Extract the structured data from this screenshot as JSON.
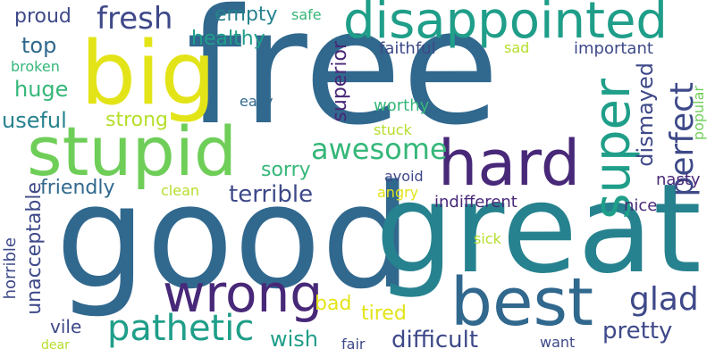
{
  "words": {
    "free": "free",
    "good": "good",
    "great": "great",
    "big": "big",
    "stupid": "stupid",
    "disappointed": "disappointed",
    "hard": "hard",
    "best": "best",
    "wrong": "wrong",
    "super": "super",
    "pathetic": "pathetic",
    "awesome": "awesome",
    "fresh": "fresh",
    "perfect": "perfect",
    "glad": "glad",
    "terrible": "terrible",
    "difficult": "difficult",
    "unacceptable": "unacceptable",
    "pretty": "pretty",
    "dismayed": "dismayed",
    "huge": "huge",
    "friendly": "friendly",
    "empty": "empty",
    "healthy": "healthy",
    "proud": "proud",
    "top": "top",
    "useful": "useful",
    "strong": "strong",
    "sorry": "sorry",
    "superior": "superior",
    "wish": "wish",
    "tired": "tired",
    "bad": "bad",
    "horrible": "horrible",
    "vile": "vile",
    "faithful": "faithful",
    "important": "important",
    "indifferent": "indifferent",
    "nasty": "nasty",
    "nice": "nice",
    "easy": "easy",
    "worthy": "worthy",
    "stuck": "stuck",
    "avoid": "avoid",
    "angry": "angry",
    "sick": "sick",
    "safe": "safe",
    "sad": "sad",
    "broken": "broken",
    "clean": "clean",
    "popular": "popular",
    "fair": "fair",
    "want": "want",
    "dear": "dear"
  },
  "colors": {
    "dark_purple": "#482878",
    "indigo": "#3e4989",
    "blue": "#31688e",
    "teal_blue": "#26828e",
    "teal": "#1f9e89",
    "green": "#35b779",
    "light_green": "#6ece58",
    "lime": "#b5de2b",
    "yellow": "#e3e418"
  }
}
